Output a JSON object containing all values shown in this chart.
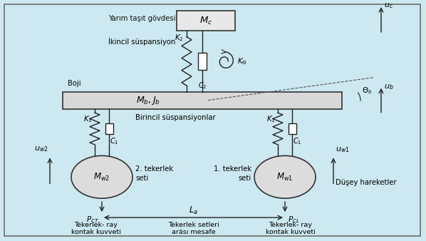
{
  "bg_color": "#cce8f0",
  "border_color": "#555555",
  "mc_label": "M_c",
  "mb_jb_label": "M_b, J_b",
  "yarim_tasit": "Yarım taşıt gövdesi",
  "ikincil": "İkincil süspansiyon",
  "boji": "Boji",
  "birincil": "Birincil süspansiyonlar",
  "tekerlek2": "2. tekerlek\nseti",
  "tekerlek1": "1. tekerlek\nseti",
  "dusey": "Düşey hareketler",
  "tekerlek_ray": "Tekerlek- ray\nkontak kuvveti",
  "tekerlek_arasi": "Tekerlek setleri\narásı mesafe"
}
